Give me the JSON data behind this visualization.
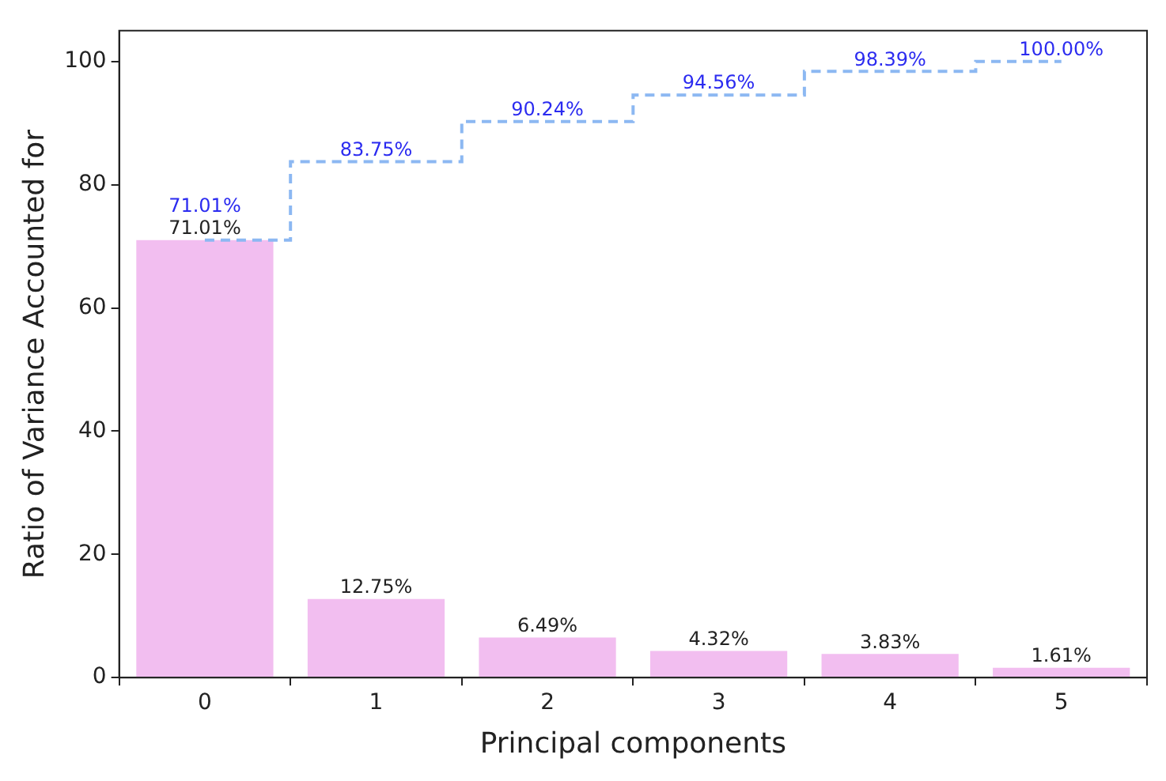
{
  "chart_data": {
    "type": "bar",
    "xlabel": "Principal components",
    "ylabel": "Ratio of Variance Accounted for",
    "categories": [
      "0",
      "1",
      "2",
      "3",
      "4",
      "5"
    ],
    "ylim": [
      0,
      105
    ],
    "yticks": [
      0,
      20,
      40,
      60,
      80,
      100
    ],
    "line_style": "dashed",
    "series": [
      {
        "color": "#f2bef0",
        "values": [
          71.01,
          12.75,
          6.49,
          4.32,
          3.83,
          1.61
        ],
        "value_labels": [
          "71.01%",
          "12.75%",
          "6.49%",
          "4.32%",
          "3.83%",
          "1.61%"
        ]
      },
      {
        "type": "step",
        "color": "#8cb8f2",
        "values": [
          71.01,
          83.75,
          90.24,
          94.56,
          98.39,
          100.0
        ],
        "value_labels": [
          "71.01%",
          "83.75%",
          "90.24%",
          "94.56%",
          "98.39%",
          "100.00%"
        ]
      }
    ]
  }
}
